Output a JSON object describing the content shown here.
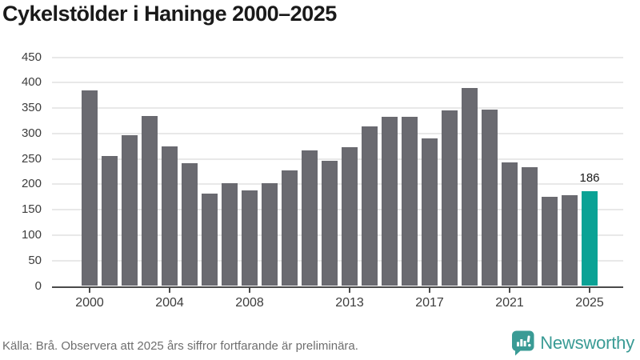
{
  "title": "Cykelstölder i Haninge 2000–2025",
  "chart_data": {
    "type": "bar",
    "title": "Cykelstölder i Haninge 2000–2025",
    "categories": [
      "2000",
      "2001",
      "2002",
      "2003",
      "2004",
      "2005",
      "2006",
      "2007",
      "2008",
      "2009",
      "2010",
      "2011",
      "2012",
      "2013",
      "2014",
      "2015",
      "2016",
      "2017",
      "2018",
      "2019",
      "2020",
      "2021",
      "2022",
      "2023",
      "2024",
      "2025"
    ],
    "values": [
      385,
      256,
      297,
      334,
      275,
      241,
      181,
      202,
      188,
      202,
      228,
      267,
      246,
      273,
      314,
      333,
      333,
      291,
      345,
      390,
      347,
      243,
      234,
      175,
      178,
      186
    ],
    "xlabel": "",
    "ylabel": "",
    "ylim": [
      0,
      450
    ],
    "y_ticks": [
      0,
      50,
      100,
      150,
      200,
      250,
      300,
      350,
      400,
      450
    ],
    "x_tick_labels": [
      "2000",
      "2004",
      "2008",
      "2013",
      "2017",
      "2021",
      "2025"
    ],
    "grid": "horizontal",
    "legend": "none",
    "highlight": {
      "index": 25,
      "category": "2025",
      "value": 186,
      "label": "186"
    }
  },
  "colors": {
    "bar_default": "#6a6a70",
    "bar_highlight": "#0aa295",
    "gridline": "#e8e8e8",
    "axis_line": "#4a4a4a",
    "axis_text": "#3d3d3d",
    "title_text": "#1a1a1a",
    "footer_text": "#6e6e6e",
    "brand": "#3a9b95"
  },
  "footer": {
    "source_note": "Källa: Brå. Observera att 2025 års siffror fortfarande är preliminära."
  },
  "branding": {
    "name": "Newsworthy",
    "icon": "bar-chart-speech-bubble-icon"
  }
}
